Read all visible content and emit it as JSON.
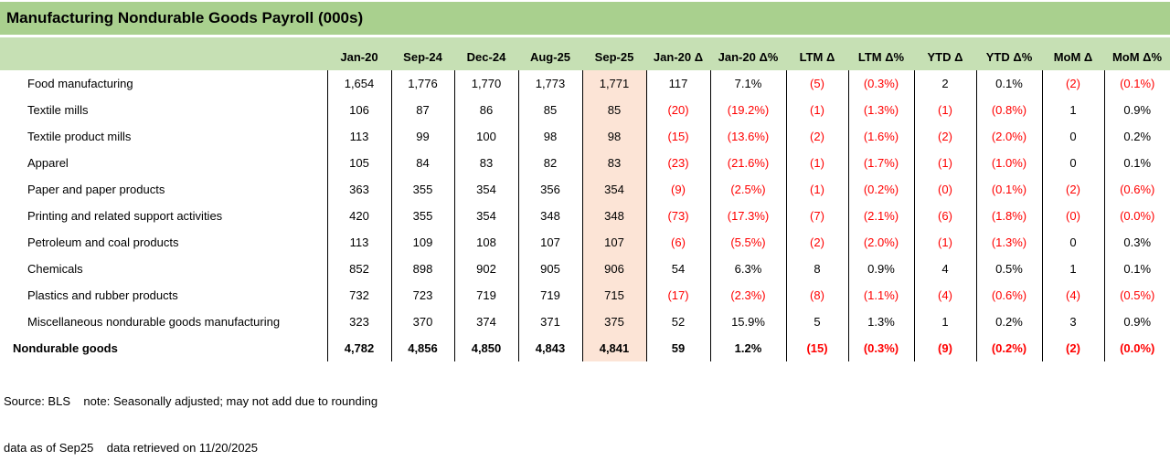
{
  "title": "Manufacturing Nondurable Goods Payroll (000s)",
  "colors": {
    "title_bg": "#a9d08e",
    "header_bg": "#c6e0b4",
    "highlight_bg": "#fce4d6",
    "negative_text": "#ff0000",
    "text": "#000000",
    "border": "#000000"
  },
  "table": {
    "label_column_header": "",
    "columns": [
      "Jan-20",
      "Sep-24",
      "Dec-24",
      "Aug-25",
      "Sep-25",
      "Jan-20 Δ",
      "Jan-20 Δ%",
      "LTM Δ",
      "LTM Δ%",
      "YTD Δ",
      "YTD Δ%",
      "MoM Δ",
      "MoM Δ%"
    ],
    "highlight_column": "Sep-25",
    "highlight_column_index": 4,
    "rows": [
      {
        "label": "Food manufacturing",
        "values": [
          "1,654",
          "1,776",
          "1,770",
          "1,773",
          "1,771",
          "117",
          "7.1%",
          "(5)",
          "(0.3%)",
          "2",
          "0.1%",
          "(2)",
          "(0.1%)"
        ]
      },
      {
        "label": "Textile mills",
        "values": [
          "106",
          "87",
          "86",
          "85",
          "85",
          "(20)",
          "(19.2%)",
          "(1)",
          "(1.3%)",
          "(1)",
          "(0.8%)",
          "1",
          "0.9%"
        ]
      },
      {
        "label": "Textile product mills",
        "values": [
          "113",
          "99",
          "100",
          "98",
          "98",
          "(15)",
          "(13.6%)",
          "(2)",
          "(1.6%)",
          "(2)",
          "(2.0%)",
          "0",
          "0.2%"
        ]
      },
      {
        "label": "Apparel",
        "values": [
          "105",
          "84",
          "83",
          "82",
          "83",
          "(23)",
          "(21.6%)",
          "(1)",
          "(1.7%)",
          "(1)",
          "(1.0%)",
          "0",
          "0.1%"
        ]
      },
      {
        "label": "Paper and paper products",
        "values": [
          "363",
          "355",
          "354",
          "356",
          "354",
          "(9)",
          "(2.5%)",
          "(1)",
          "(0.2%)",
          "(0)",
          "(0.1%)",
          "(2)",
          "(0.6%)"
        ]
      },
      {
        "label": "Printing and related support activities",
        "values": [
          "420",
          "355",
          "354",
          "348",
          "348",
          "(73)",
          "(17.3%)",
          "(7)",
          "(2.1%)",
          "(6)",
          "(1.8%)",
          "(0)",
          "(0.0%)"
        ]
      },
      {
        "label": "Petroleum and coal products",
        "values": [
          "113",
          "109",
          "108",
          "107",
          "107",
          "(6)",
          "(5.5%)",
          "(2)",
          "(2.0%)",
          "(1)",
          "(1.3%)",
          "0",
          "0.3%"
        ]
      },
      {
        "label": "Chemicals",
        "values": [
          "852",
          "898",
          "902",
          "905",
          "906",
          "54",
          "6.3%",
          "8",
          "0.9%",
          "4",
          "0.5%",
          "1",
          "0.1%"
        ]
      },
      {
        "label": "Plastics and rubber products",
        "values": [
          "732",
          "723",
          "719",
          "719",
          "715",
          "(17)",
          "(2.3%)",
          "(8)",
          "(1.1%)",
          "(4)",
          "(0.6%)",
          "(4)",
          "(0.5%)"
        ]
      },
      {
        "label": "Miscellaneous nondurable goods manufacturing",
        "values": [
          "323",
          "370",
          "374",
          "371",
          "375",
          "52",
          "15.9%",
          "5",
          "1.3%",
          "1",
          "0.2%",
          "3",
          "0.9%"
        ]
      }
    ],
    "total_row": {
      "label": "Nondurable goods",
      "values": [
        "4,782",
        "4,856",
        "4,850",
        "4,843",
        "4,841",
        "59",
        "1.2%",
        "(15)",
        "(0.3%)",
        "(9)",
        "(0.2%)",
        "(2)",
        "(0.0%)"
      ]
    }
  },
  "footer": {
    "line1": "Source: BLS    note: Seasonally adjusted; may not add due to rounding",
    "line2": "data as of Sep25    data retrieved on 11/20/2025"
  }
}
